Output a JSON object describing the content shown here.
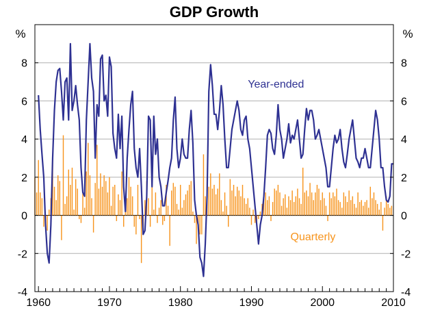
{
  "chart_data": {
    "type": "bar",
    "title": "GDP Growth",
    "ylabel_left": "%",
    "ylabel_right": "%",
    "xlim": [
      1959.5,
      2010
    ],
    "ylim": [
      -4,
      10
    ],
    "yticks": [
      -4,
      -2,
      0,
      2,
      4,
      6,
      8
    ],
    "xticks": [
      1960,
      1970,
      1980,
      1990,
      2000,
      2010
    ],
    "grid": true,
    "line_series": {
      "name": "Year-ended",
      "color": "#2e3192",
      "points": [
        [
          1960.0,
          6.3
        ],
        [
          1960.25,
          4.5
        ],
        [
          1960.5,
          3.2
        ],
        [
          1960.75,
          2.0
        ],
        [
          1961.0,
          -0.5
        ],
        [
          1961.25,
          -2.0
        ],
        [
          1961.5,
          -2.5
        ],
        [
          1961.75,
          -0.5
        ],
        [
          1962.0,
          3.0
        ],
        [
          1962.25,
          5.5
        ],
        [
          1962.5,
          7.0
        ],
        [
          1962.75,
          7.6
        ],
        [
          1963.0,
          7.7
        ],
        [
          1963.25,
          6.5
        ],
        [
          1963.5,
          5.0
        ],
        [
          1963.75,
          7.0
        ],
        [
          1964.0,
          7.2
        ],
        [
          1964.25,
          5.0
        ],
        [
          1964.5,
          9.0
        ],
        [
          1964.75,
          5.5
        ],
        [
          1965.0,
          6.0
        ],
        [
          1965.25,
          6.8
        ],
        [
          1965.5,
          5.8
        ],
        [
          1965.75,
          5.0
        ],
        [
          1966.0,
          2.5
        ],
        [
          1966.25,
          1.2
        ],
        [
          1966.5,
          1.0
        ],
        [
          1966.75,
          5.0
        ],
        [
          1967.0,
          7.0
        ],
        [
          1967.25,
          9.0
        ],
        [
          1967.5,
          7.2
        ],
        [
          1967.75,
          6.5
        ],
        [
          1968.0,
          3.0
        ],
        [
          1968.25,
          5.8
        ],
        [
          1968.5,
          5.2
        ],
        [
          1968.75,
          8.2
        ],
        [
          1969.0,
          8.4
        ],
        [
          1969.25,
          6.0
        ],
        [
          1969.5,
          6.3
        ],
        [
          1969.75,
          5.2
        ],
        [
          1970.0,
          8.3
        ],
        [
          1970.25,
          7.8
        ],
        [
          1970.5,
          4.3
        ],
        [
          1970.75,
          3.5
        ],
        [
          1971.0,
          3.0
        ],
        [
          1971.25,
          5.3
        ],
        [
          1971.5,
          3.5
        ],
        [
          1971.75,
          5.2
        ],
        [
          1972.0,
          1.5
        ],
        [
          1972.25,
          0.2
        ],
        [
          1972.5,
          3.0
        ],
        [
          1972.75,
          4.5
        ],
        [
          1973.0,
          5.8
        ],
        [
          1973.25,
          6.5
        ],
        [
          1973.5,
          3.5
        ],
        [
          1973.75,
          2.5
        ],
        [
          1974.0,
          2.0
        ],
        [
          1974.25,
          3.5
        ],
        [
          1974.5,
          1.5
        ],
        [
          1974.75,
          -1.0
        ],
        [
          1975.0,
          -0.8
        ],
        [
          1975.25,
          1.0
        ],
        [
          1975.5,
          5.2
        ],
        [
          1975.75,
          5.0
        ],
        [
          1976.0,
          1.5
        ],
        [
          1976.25,
          5.2
        ],
        [
          1976.5,
          3.2
        ],
        [
          1976.75,
          4.0
        ],
        [
          1977.0,
          2.0
        ],
        [
          1977.25,
          1.5
        ],
        [
          1977.5,
          0.5
        ],
        [
          1977.75,
          0.5
        ],
        [
          1978.0,
          1.2
        ],
        [
          1978.25,
          1.8
        ],
        [
          1978.5,
          2.5
        ],
        [
          1978.75,
          3.0
        ],
        [
          1979.0,
          5.0
        ],
        [
          1979.25,
          6.2
        ],
        [
          1979.5,
          3.5
        ],
        [
          1979.75,
          2.5
        ],
        [
          1980.0,
          3.0
        ],
        [
          1980.25,
          4.0
        ],
        [
          1980.5,
          3.2
        ],
        [
          1980.75,
          3.0
        ],
        [
          1981.0,
          3.0
        ],
        [
          1981.25,
          4.5
        ],
        [
          1981.5,
          5.5
        ],
        [
          1981.75,
          3.8
        ],
        [
          1982.0,
          0.8
        ],
        [
          1982.25,
          0.0
        ],
        [
          1982.5,
          -0.5
        ],
        [
          1982.75,
          -2.2
        ],
        [
          1983.0,
          -2.5
        ],
        [
          1983.25,
          -3.2
        ],
        [
          1983.5,
          -1.5
        ],
        [
          1983.75,
          1.0
        ],
        [
          1984.0,
          6.5
        ],
        [
          1984.25,
          7.9
        ],
        [
          1984.5,
          6.8
        ],
        [
          1984.75,
          5.3
        ],
        [
          1985.0,
          5.3
        ],
        [
          1985.25,
          4.5
        ],
        [
          1985.5,
          5.5
        ],
        [
          1985.75,
          6.8
        ],
        [
          1986.0,
          5.8
        ],
        [
          1986.25,
          4.0
        ],
        [
          1986.5,
          2.5
        ],
        [
          1986.75,
          2.5
        ],
        [
          1987.0,
          3.5
        ],
        [
          1987.25,
          4.5
        ],
        [
          1987.5,
          5.0
        ],
        [
          1987.75,
          5.5
        ],
        [
          1988.0,
          6.0
        ],
        [
          1988.25,
          5.5
        ],
        [
          1988.5,
          4.5
        ],
        [
          1988.75,
          4.2
        ],
        [
          1989.0,
          5.0
        ],
        [
          1989.25,
          5.2
        ],
        [
          1989.5,
          4.0
        ],
        [
          1989.75,
          3.5
        ],
        [
          1990.0,
          2.5
        ],
        [
          1990.25,
          1.5
        ],
        [
          1990.5,
          0.5
        ],
        [
          1990.75,
          -0.5
        ],
        [
          1991.0,
          -1.5
        ],
        [
          1991.25,
          -0.5
        ],
        [
          1991.5,
          0.0
        ],
        [
          1991.75,
          1.0
        ],
        [
          1992.0,
          2.5
        ],
        [
          1992.25,
          4.2
        ],
        [
          1992.5,
          4.5
        ],
        [
          1992.75,
          4.3
        ],
        [
          1993.0,
          3.5
        ],
        [
          1993.25,
          3.2
        ],
        [
          1993.5,
          4.2
        ],
        [
          1993.75,
          5.8
        ],
        [
          1994.0,
          4.5
        ],
        [
          1994.25,
          4.0
        ],
        [
          1994.5,
          3.0
        ],
        [
          1994.75,
          3.5
        ],
        [
          1995.0,
          4.0
        ],
        [
          1995.25,
          4.8
        ],
        [
          1995.5,
          3.8
        ],
        [
          1995.75,
          4.2
        ],
        [
          1996.0,
          4.0
        ],
        [
          1996.25,
          4.5
        ],
        [
          1996.5,
          5.0
        ],
        [
          1996.75,
          4.0
        ],
        [
          1997.0,
          3.0
        ],
        [
          1997.25,
          3.2
        ],
        [
          1997.5,
          4.5
        ],
        [
          1997.75,
          5.6
        ],
        [
          1998.0,
          5.0
        ],
        [
          1998.25,
          5.5
        ],
        [
          1998.5,
          5.5
        ],
        [
          1998.75,
          5.0
        ],
        [
          1999.0,
          4.0
        ],
        [
          1999.25,
          4.2
        ],
        [
          1999.5,
          4.5
        ],
        [
          1999.75,
          4.0
        ],
        [
          2000.0,
          3.5
        ],
        [
          2000.25,
          3.0
        ],
        [
          2000.5,
          2.5
        ],
        [
          2000.75,
          1.5
        ],
        [
          2001.0,
          1.5
        ],
        [
          2001.25,
          2.5
        ],
        [
          2001.5,
          3.5
        ],
        [
          2001.75,
          4.2
        ],
        [
          2002.0,
          3.8
        ],
        [
          2002.25,
          4.0
        ],
        [
          2002.5,
          4.5
        ],
        [
          2002.75,
          3.5
        ],
        [
          2003.0,
          2.8
        ],
        [
          2003.25,
          2.5
        ],
        [
          2003.5,
          3.2
        ],
        [
          2003.75,
          4.0
        ],
        [
          2004.0,
          4.5
        ],
        [
          2004.25,
          5.0
        ],
        [
          2004.5,
          4.0
        ],
        [
          2004.75,
          3.0
        ],
        [
          2005.0,
          2.8
        ],
        [
          2005.25,
          2.5
        ],
        [
          2005.5,
          3.0
        ],
        [
          2005.75,
          3.0
        ],
        [
          2006.0,
          3.5
        ],
        [
          2006.25,
          3.0
        ],
        [
          2006.5,
          2.5
        ],
        [
          2006.75,
          2.5
        ],
        [
          2007.0,
          3.5
        ],
        [
          2007.25,
          4.5
        ],
        [
          2007.5,
          5.5
        ],
        [
          2007.75,
          5.0
        ],
        [
          2008.0,
          4.0
        ],
        [
          2008.25,
          2.5
        ],
        [
          2008.5,
          2.5
        ],
        [
          2008.75,
          1.5
        ],
        [
          2009.0,
          0.8
        ],
        [
          2009.25,
          0.7
        ],
        [
          2009.5,
          1.0
        ],
        [
          2009.75,
          2.7
        ],
        [
          2010.0,
          2.7
        ]
      ]
    },
    "bar_series": {
      "name": "Quarterly",
      "color": "#f7941d",
      "x": [
        1959.5,
        1959.75,
        1960.0,
        1960.25,
        1960.5,
        1960.75,
        1961.0,
        1961.25,
        1961.5,
        1961.75,
        1962.0,
        1962.25,
        1962.5,
        1962.75,
        1963.0,
        1963.25,
        1963.5,
        1963.75,
        1964.0,
        1964.25,
        1964.5,
        1964.75,
        1965.0,
        1965.25,
        1965.5,
        1965.75,
        1966.0,
        1966.25,
        1966.5,
        1966.75,
        1967.0,
        1967.25,
        1967.5,
        1967.75,
        1968.0,
        1968.25,
        1968.5,
        1968.75,
        1969.0,
        1969.25,
        1969.5,
        1969.75,
        1970.0,
        1970.25,
        1970.5,
        1970.75,
        1971.0,
        1971.25,
        1971.5,
        1971.75,
        1972.0,
        1972.25,
        1972.5,
        1972.75,
        1973.0,
        1973.25,
        1973.5,
        1973.75,
        1974.0,
        1974.25,
        1974.5,
        1974.75,
        1975.0,
        1975.25,
        1975.5,
        1975.75,
        1976.0,
        1976.25,
        1976.5,
        1976.75,
        1977.0,
        1977.25,
        1977.5,
        1977.75,
        1978.0,
        1978.25,
        1978.5,
        1978.75,
        1979.0,
        1979.25,
        1979.5,
        1979.75,
        1980.0,
        1980.25,
        1980.5,
        1980.75,
        1981.0,
        1981.25,
        1981.5,
        1981.75,
        1982.0,
        1982.25,
        1982.5,
        1982.75,
        1983.0,
        1983.25,
        1983.5,
        1983.75,
        1984.0,
        1984.25,
        1984.5,
        1984.75,
        1985.0,
        1985.25,
        1985.5,
        1985.75,
        1986.0,
        1986.25,
        1986.5,
        1986.75,
        1987.0,
        1987.25,
        1987.5,
        1987.75,
        1988.0,
        1988.25,
        1988.5,
        1988.75,
        1989.0,
        1989.25,
        1989.5,
        1989.75,
        1990.0,
        1990.25,
        1990.5,
        1990.75,
        1991.0,
        1991.25,
        1991.5,
        1991.75,
        1992.0,
        1992.25,
        1992.5,
        1992.75,
        1993.0,
        1993.25,
        1993.5,
        1993.75,
        1994.0,
        1994.25,
        1994.5,
        1994.75,
        1995.0,
        1995.25,
        1995.5,
        1995.75,
        1996.0,
        1996.25,
        1996.5,
        1996.75,
        1997.0,
        1997.25,
        1997.5,
        1997.75,
        1998.0,
        1998.25,
        1998.5,
        1998.75,
        1999.0,
        1999.25,
        1999.5,
        1999.75,
        2000.0,
        2000.25,
        2000.5,
        2000.75,
        2001.0,
        2001.25,
        2001.5,
        2001.75,
        2002.0,
        2002.25,
        2002.5,
        2002.75,
        2003.0,
        2003.25,
        2003.5,
        2003.75,
        2004.0,
        2004.25,
        2004.5,
        2004.75,
        2005.0,
        2005.25,
        2005.5,
        2005.75,
        2006.0,
        2006.25,
        2006.5,
        2006.75,
        2007.0,
        2007.25,
        2007.5,
        2007.75,
        2008.0,
        2008.25,
        2008.5,
        2008.75,
        2009.0,
        2009.25,
        2009.5,
        2009.75
      ],
      "values": [
        2.0,
        1.2,
        2.9,
        1.2,
        0.9,
        -0.6,
        -0.4,
        -0.8,
        0.3,
        0.9,
        3.0,
        1.5,
        0.8,
        2.1,
        1.8,
        -1.3,
        4.2,
        0.6,
        1.0,
        2.4,
        1.6,
        2.5,
        0.3,
        1.9,
        1.4,
        -0.2,
        -0.4,
        1.3,
        0.4,
        2.3,
        3.8,
        2.1,
        0.9,
        -0.9,
        1.7,
        3.7,
        1.4,
        2.2,
        1.5,
        2.1,
        1.8,
        1.2,
        2.0,
        0.5,
        1.5,
        1.6,
        -0.3,
        1.1,
        0.8,
        2.3,
        -0.6,
        0.9,
        0.9,
        2.0,
        1.5,
        1.0,
        -0.6,
        -1.0,
        1.6,
        -0.2,
        -2.5,
        -0.6,
        0.8,
        1.8,
        0.9,
        -0.6,
        1.9,
        0.3,
        1.2,
        -0.4,
        0.4,
        0.8,
        -0.5,
        -0.3,
        1.6,
        0.5,
        -1.6,
        1.3,
        1.7,
        1.5,
        0.6,
        0.3,
        1.6,
        0.4,
        0.8,
        1.1,
        1.3,
        1.6,
        1.8,
        0.2,
        -0.4,
        -1.5,
        -0.8,
        -1.0,
        -1.0,
        3.2,
        1.0,
        2.0,
        1.5,
        2.2,
        1.4,
        1.6,
        1.1,
        1.4,
        2.2,
        0.8,
        0.2,
        1.2,
        0.5,
        -0.6,
        1.9,
        1.3,
        1.6,
        1.0,
        1.5,
        1.3,
        1.0,
        1.6,
        0.9,
        0.6,
        0.9,
        0.4,
        -0.5,
        0.3,
        -0.4,
        -0.5,
        -0.2,
        0.2,
        0.6,
        0.9,
        1.2,
        0.8,
        1.0,
        -0.3,
        0.7,
        1.4,
        1.3,
        1.6,
        1.2,
        0.5,
        0.9,
        1.1,
        0.4,
        1.0,
        0.8,
        1.3,
        0.7,
        1.0,
        1.4,
        0.9,
        0.6,
        2.5,
        1.2,
        1.3,
        1.0,
        1.7,
        1.2,
        0.8,
        1.2,
        1.6,
        1.4,
        0.8,
        1.2,
        0.9,
        0.5,
        -0.3,
        1.2,
        0.9,
        1.2,
        1.0,
        1.4,
        0.8,
        0.7,
        0.4,
        1.2,
        1.0,
        0.7,
        1.3,
        0.8,
        1.0,
        0.6,
        0.4,
        1.2,
        0.7,
        0.8,
        0.5,
        0.7,
        0.8,
        0.4,
        1.5,
        0.9,
        1.2,
        0.8,
        0.6,
        0.3,
        0.7,
        -0.8,
        0.4,
        1.0,
        0.6,
        0.4,
        0.5
      ]
    },
    "annotations": [
      {
        "text": "Year-ended",
        "x": 1989.5,
        "y": 6.7,
        "color": "#2e3192"
      },
      {
        "text": "Quarterly",
        "x": 1995.5,
        "y": -1.3,
        "color": "#f7941d"
      }
    ]
  }
}
